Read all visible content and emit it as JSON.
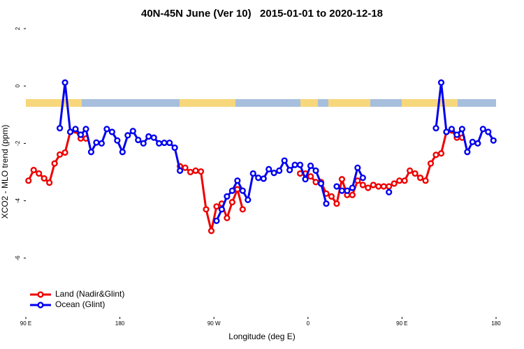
{
  "chart_data": {
    "type": "line",
    "title": "40N-45N June (Ver 10)   2015-01-01 to 2020-12-18",
    "x_label": "Longitude (deg E)",
    "y_label": "XCO2 - MLO trend (ppm)",
    "xlim": [
      90,
      540
    ],
    "xticks": [
      {
        "value": 90,
        "label": "90 E"
      },
      {
        "value": 180,
        "label": "180"
      },
      {
        "value": 270,
        "label": "90 W"
      },
      {
        "value": 360,
        "label": "0"
      },
      {
        "value": 450,
        "label": "90 E"
      },
      {
        "value": 540,
        "label": "180"
      }
    ],
    "ylim": [
      -8,
      2
    ],
    "yticks": [
      -6,
      -4,
      -2,
      0,
      2
    ],
    "legend": "bottom-left",
    "x": [
      92.5,
      97.5,
      102.5,
      107.5,
      112.5,
      117.5,
      122.5,
      127.5,
      132.5,
      137.5,
      142.5,
      147.5,
      152.5,
      157.5,
      162.5,
      167.5,
      172.5,
      177.5,
      182.5,
      187.5,
      192.5,
      197.5,
      202.5,
      207.5,
      212.5,
      217.5,
      222.5,
      227.5,
      232.5,
      237.5,
      242.5,
      247.5,
      252.5,
      257.5,
      262.5,
      267.5,
      272.5,
      277.5,
      282.5,
      287.5,
      292.5,
      297.5,
      302.5,
      307.5,
      312.5,
      317.5,
      322.5,
      327.5,
      332.5,
      337.5,
      342.5,
      347.5,
      352.5,
      357.5,
      362.5,
      367.5,
      372.5,
      377.5,
      382.5,
      387.5,
      392.5,
      397.5,
      402.5,
      407.5,
      412.5,
      417.5,
      422.5,
      427.5,
      432.5,
      437.5,
      442.5,
      447.5,
      452.5,
      457.5,
      462.5,
      467.5,
      472.5,
      477.5,
      482.5,
      487.5,
      492.5,
      497.5,
      502.5,
      507.5,
      512.5,
      517.5,
      522.5,
      527.5,
      532.5,
      537.5
    ],
    "series": [
      {
        "name": "Land (Nadir&Glint)",
        "color": "#ee0000",
        "values": [
          -3.3,
          -2.93,
          -3.05,
          -3.22,
          -3.37,
          -2.7,
          -2.39,
          -2.32,
          -1.6,
          -1.55,
          -1.83,
          -1.83,
          null,
          null,
          null,
          null,
          null,
          null,
          null,
          null,
          null,
          null,
          null,
          null,
          null,
          null,
          null,
          null,
          null,
          -2.8,
          -2.85,
          -3.0,
          -2.95,
          -2.98,
          -4.3,
          -5.05,
          -4.2,
          -4.1,
          -4.6,
          -4.05,
          -3.6,
          -4.3,
          null,
          null,
          null,
          null,
          null,
          null,
          null,
          null,
          null,
          null,
          -3.05,
          -3.05,
          -3.15,
          -3.35,
          -3.35,
          -3.75,
          -3.85,
          -4.1,
          -3.25,
          -3.8,
          -3.8,
          -3.3,
          -3.45,
          -3.55,
          -3.45,
          -3.5,
          -3.5,
          -3.5,
          -3.4,
          -3.3,
          -3.3,
          -2.95,
          -3.05,
          -3.2,
          -3.3,
          -2.7,
          -2.4,
          -2.35,
          -1.6,
          -1.55,
          -1.8,
          -1.8,
          null,
          null,
          null,
          null,
          null,
          null
        ]
      },
      {
        "name": "Ocean (Glint)",
        "color": "#0000ee",
        "values": [
          null,
          null,
          null,
          null,
          null,
          null,
          -1.47,
          0.12,
          -1.6,
          -1.5,
          -1.7,
          -1.5,
          -2.3,
          -1.97,
          -2.0,
          -1.5,
          -1.6,
          -1.9,
          -2.3,
          -1.72,
          -1.57,
          -1.88,
          -2.0,
          -1.76,
          -1.8,
          -2.0,
          -1.98,
          -1.98,
          -2.15,
          -2.95,
          null,
          null,
          null,
          null,
          null,
          null,
          -4.7,
          -4.3,
          -3.85,
          -3.65,
          -3.3,
          -3.65,
          -3.97,
          -3.05,
          -3.2,
          -3.23,
          -2.9,
          -3.03,
          -2.95,
          -2.6,
          -2.93,
          -2.75,
          -2.75,
          -3.25,
          -2.78,
          -2.95,
          -3.4,
          -4.1,
          null,
          -3.5,
          -3.65,
          -3.65,
          -3.55,
          -2.85,
          -3.2,
          null,
          null,
          null,
          null,
          -3.7,
          null,
          null,
          null,
          null,
          null,
          null,
          null,
          null,
          -1.47,
          0.12,
          -1.6,
          -1.5,
          -1.7,
          -1.5,
          -2.3,
          -1.95,
          -2.0,
          -1.5,
          -1.6,
          -1.9
        ]
      }
    ]
  }
}
